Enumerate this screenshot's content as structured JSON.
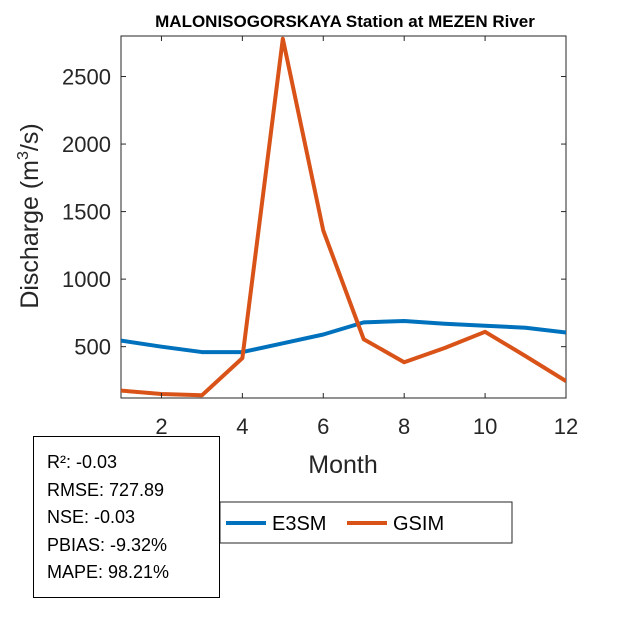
{
  "chart_data": {
    "type": "line",
    "title": "MALONISOGORSKAYA  Station at  MEZEN  River",
    "xlabel": "Month",
    "ylabel": "Discharge (m³/s)",
    "ylabel_parts": {
      "pre": "Discharge (m",
      "sup": "3",
      "post": "/s)"
    },
    "xlim": [
      1,
      12
    ],
    "ylim": [
      120,
      2800
    ],
    "xticks": [
      2,
      4,
      6,
      8,
      10,
      12
    ],
    "yticks": [
      500,
      1000,
      1500,
      2000,
      2500
    ],
    "x": [
      1,
      2,
      3,
      4,
      5,
      6,
      7,
      8,
      9,
      10,
      11,
      12
    ],
    "series": [
      {
        "name": "E3SM",
        "color": "#0072BD",
        "values": [
          545,
          500,
          460,
          460,
          525,
          590,
          680,
          690,
          670,
          655,
          640,
          605
        ]
      },
      {
        "name": "GSIM",
        "color": "#D95319",
        "values": [
          175,
          150,
          140,
          415,
          2780,
          1360,
          555,
          385,
          490,
          610,
          430,
          245
        ]
      }
    ],
    "legend": {
      "placement": "bottom-center",
      "orientation": "horizontal"
    }
  },
  "stats": {
    "r2": "R²: -0.03",
    "rmse": "RMSE: 727.89",
    "nse": "NSE: -0.03",
    "pbias": "PBIAS: -9.32%",
    "mape": "MAPE: 98.21%"
  }
}
